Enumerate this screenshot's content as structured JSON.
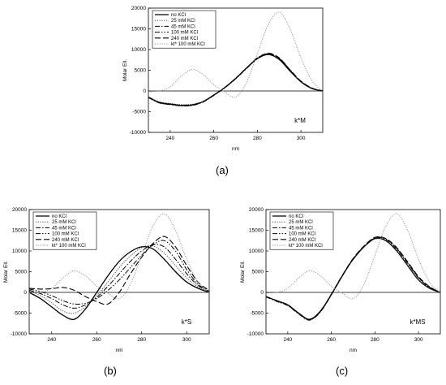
{
  "panel_labels": [
    "(a)",
    "(b)",
    "(c)"
  ],
  "chart_data": [
    {
      "type": "line",
      "title": "k*M",
      "xlabel": "nm",
      "ylabel": "Molar Ell.",
      "xlim": [
        230,
        310
      ],
      "ylim": [
        -10000,
        20000
      ],
      "xticks": [
        240,
        260,
        280,
        300
      ],
      "yticks": [
        -10000,
        -5000,
        0,
        5000,
        10000,
        15000,
        20000
      ],
      "legend_position": "top-left",
      "x": [
        230,
        235,
        240,
        245,
        250,
        255,
        260,
        265,
        270,
        275,
        280,
        285,
        290,
        295,
        300,
        305,
        310
      ],
      "series": [
        {
          "name": "no KCl",
          "style": "solid",
          "values": [
            -1500,
            -2800,
            -3200,
            -3500,
            -3400,
            -2600,
            -1000,
            800,
            3000,
            5500,
            7800,
            8800,
            7600,
            4800,
            2200,
            600,
            0
          ]
        },
        {
          "name": "25 mM KCl",
          "style": "dotted",
          "values": [
            -1400,
            -2600,
            -3000,
            -3300,
            -3200,
            -2500,
            -900,
            900,
            3100,
            5600,
            7900,
            8900,
            7700,
            4900,
            2200,
            600,
            0
          ]
        },
        {
          "name": "45 mM KCl",
          "style": "dashdot",
          "values": [
            -1600,
            -2900,
            -3300,
            -3600,
            -3500,
            -2700,
            -1100,
            700,
            2900,
            5400,
            7800,
            8900,
            7800,
            5000,
            2300,
            600,
            0
          ]
        },
        {
          "name": "100 mM KCl",
          "style": "dashdotdot",
          "values": [
            -1500,
            -2700,
            -3100,
            -3400,
            -3300,
            -2600,
            -1000,
            800,
            3000,
            5500,
            8000,
            9000,
            7900,
            5100,
            2300,
            700,
            0
          ]
        },
        {
          "name": "240 mM KCl",
          "style": "dashed",
          "values": [
            -1500,
            -2800,
            -3200,
            -3500,
            -3400,
            -2600,
            -1000,
            800,
            3000,
            5500,
            7900,
            9100,
            8000,
            5100,
            2400,
            700,
            0
          ]
        },
        {
          "name": "kt* 100 mM KCl",
          "style": "grey-dotted",
          "values": [
            -200,
            0,
            1000,
            3500,
            5200,
            4000,
            1500,
            -200,
            -1500,
            2000,
            9000,
            16000,
            19000,
            15000,
            8000,
            2500,
            0
          ]
        }
      ]
    },
    {
      "type": "line",
      "title": "k*S",
      "xlabel": "nm",
      "ylabel": "Molar Ell.",
      "xlim": [
        230,
        310
      ],
      "ylim": [
        -10000,
        20000
      ],
      "xticks": [
        240,
        260,
        280,
        300
      ],
      "yticks": [
        -10000,
        -5000,
        0,
        5000,
        10000,
        15000,
        20000
      ],
      "legend_position": "top-left",
      "x": [
        230,
        235,
        240,
        245,
        250,
        255,
        260,
        265,
        270,
        275,
        280,
        285,
        290,
        295,
        300,
        305,
        310
      ],
      "series": [
        {
          "name": "no KCl",
          "style": "solid",
          "values": [
            0,
            -1500,
            -3500,
            -5500,
            -6500,
            -4000,
            0,
            4000,
            7500,
            9800,
            11000,
            10500,
            8000,
            5000,
            2500,
            1000,
            0
          ]
        },
        {
          "name": "25 mM KCl",
          "style": "dotted",
          "values": [
            300,
            -800,
            -2500,
            -4500,
            -5000,
            -3500,
            -800,
            2500,
            6000,
            8800,
            10800,
            11200,
            9500,
            6500,
            3500,
            1300,
            0
          ]
        },
        {
          "name": "45 mM KCl",
          "style": "dashdot",
          "values": [
            500,
            -300,
            -1500,
            -3000,
            -3800,
            -3000,
            -1200,
            1500,
            4500,
            7500,
            10000,
            11500,
            11000,
            8000,
            4500,
            1700,
            200
          ]
        },
        {
          "name": "100 mM KCl",
          "style": "dashdotdot",
          "values": [
            800,
            200,
            -800,
            -2000,
            -2800,
            -2600,
            -1500,
            500,
            3000,
            6000,
            9000,
            11500,
            12500,
            10000,
            5500,
            2000,
            300
          ]
        },
        {
          "name": "240 mM KCl",
          "style": "dashed",
          "values": [
            1000,
            800,
            900,
            1200,
            500,
            -1000,
            -2200,
            -2800,
            0,
            4500,
            8500,
            11800,
            13500,
            11000,
            6500,
            2500,
            500
          ]
        },
        {
          "name": "kt* 100 mM KCl",
          "style": "grey-dotted",
          "values": [
            -200,
            0,
            1000,
            3500,
            5200,
            4000,
            1500,
            -200,
            -1500,
            2000,
            9000,
            16000,
            19000,
            15000,
            8000,
            2500,
            0
          ]
        }
      ]
    },
    {
      "type": "line",
      "title": "k*MS",
      "xlabel": "nm",
      "ylabel": "Molar Ell.",
      "xlim": [
        230,
        310
      ],
      "ylim": [
        -10000,
        20000
      ],
      "xticks": [
        240,
        260,
        280,
        300
      ],
      "yticks": [
        -10000,
        -5000,
        0,
        5000,
        10000,
        15000,
        20000
      ],
      "legend_position": "top-left",
      "x": [
        230,
        235,
        240,
        245,
        250,
        255,
        260,
        265,
        270,
        275,
        280,
        285,
        290,
        295,
        300,
        305,
        310
      ],
      "series": [
        {
          "name": "no KCl",
          "style": "solid",
          "values": [
            -1000,
            -2000,
            -3000,
            -5000,
            -6500,
            -4500,
            -500,
            4000,
            8000,
            11000,
            13000,
            12500,
            10000,
            6500,
            3000,
            1000,
            0
          ]
        },
        {
          "name": "25 mM KCl",
          "style": "dotted",
          "values": [
            -1000,
            -2100,
            -3100,
            -5100,
            -6600,
            -4600,
            -600,
            3900,
            8000,
            11000,
            12900,
            12400,
            9900,
            6400,
            3000,
            1000,
            0
          ]
        },
        {
          "name": "45 mM KCl",
          "style": "dashdot",
          "values": [
            -1100,
            -2200,
            -3200,
            -5200,
            -6700,
            -4700,
            -600,
            3900,
            8100,
            11100,
            13100,
            12800,
            10400,
            7000,
            3500,
            1200,
            0
          ]
        },
        {
          "name": "100 mM KCl",
          "style": "dashdotdot",
          "values": [
            -1000,
            -2100,
            -3100,
            -5100,
            -6600,
            -4600,
            -500,
            4000,
            8100,
            11100,
            13200,
            12900,
            10600,
            7200,
            3600,
            1300,
            0
          ]
        },
        {
          "name": "240 mM KCl",
          "style": "dashed",
          "values": [
            -1000,
            -2000,
            -3000,
            -5000,
            -6500,
            -4500,
            -400,
            4100,
            8200,
            11200,
            13300,
            13000,
            10800,
            7400,
            3800,
            1400,
            0
          ]
        },
        {
          "name": "kt* 100 mM KCl",
          "style": "grey-dotted",
          "values": [
            -200,
            0,
            1000,
            3500,
            5200,
            4000,
            1500,
            -200,
            -1500,
            2000,
            9000,
            16000,
            19000,
            15000,
            8000,
            2500,
            0
          ]
        }
      ]
    }
  ]
}
